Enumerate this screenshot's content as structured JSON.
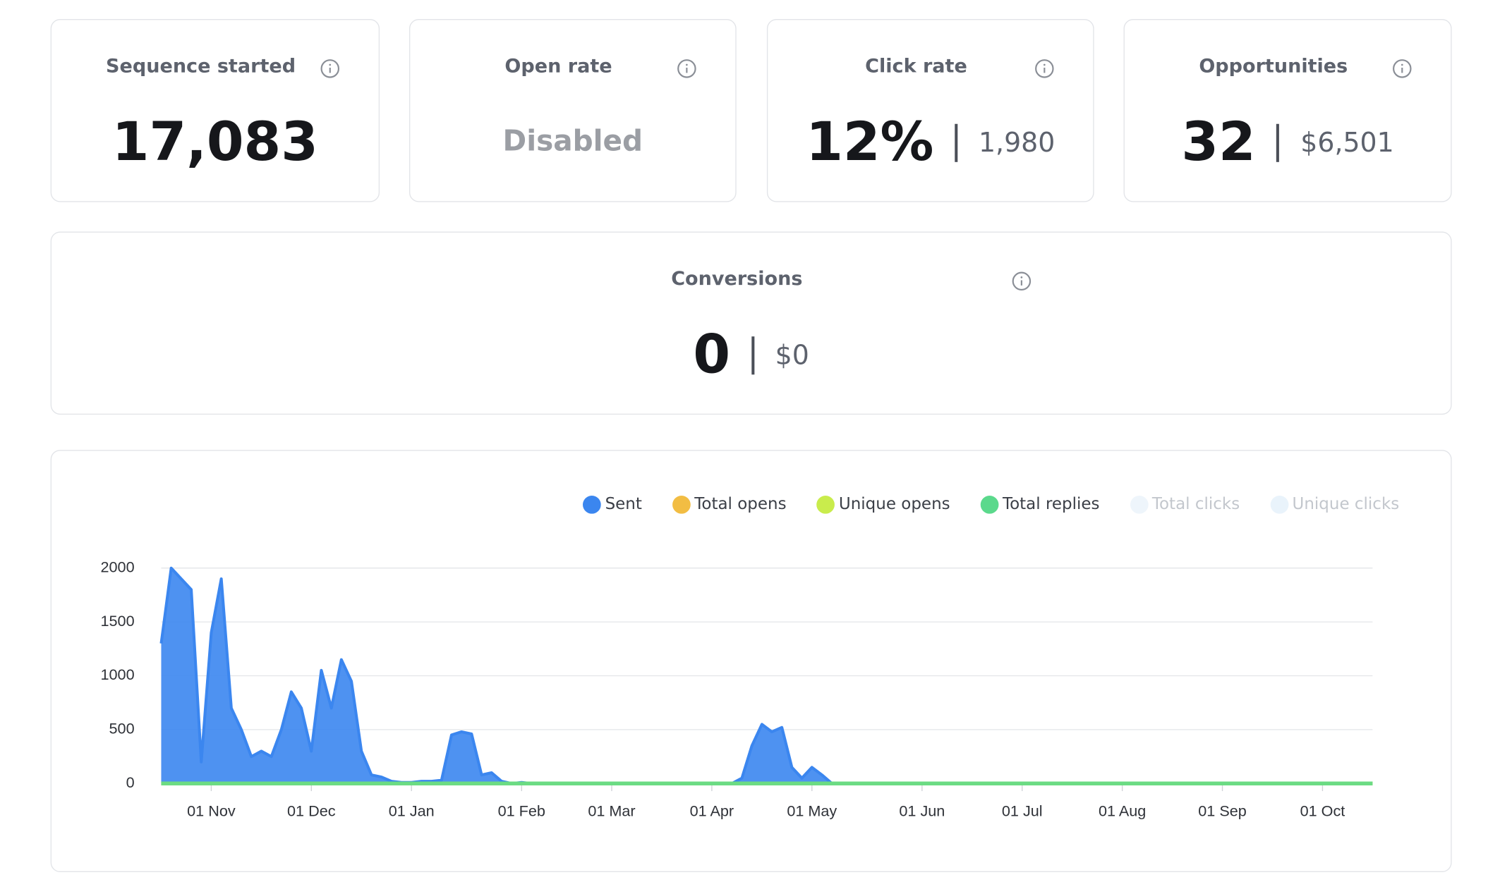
{
  "cards": [
    {
      "title": "Sequence started",
      "value": "17,083"
    },
    {
      "title": "Open rate",
      "value": "Disabled"
    },
    {
      "title": "Click rate",
      "value": "12%",
      "secondary": "1,980"
    },
    {
      "title": "Opportunities",
      "value": "32",
      "secondary": "$6,501"
    },
    {
      "title": "Conversions",
      "value": "0",
      "secondary": "$0"
    }
  ],
  "chart_data": {
    "type": "area",
    "categories": [
      null,
      null,
      null,
      null,
      null,
      "01 Nov",
      null,
      null,
      null,
      null,
      null,
      null,
      null,
      null,
      null,
      "01 Dec",
      null,
      null,
      null,
      null,
      null,
      null,
      null,
      null,
      null,
      "01 Jan",
      null,
      null,
      null,
      null,
      null,
      null,
      null,
      null,
      null,
      null,
      "01 Feb",
      null,
      null,
      null,
      null,
      null,
      null,
      null,
      null,
      "01 Mar",
      null,
      null,
      null,
      null,
      null,
      null,
      null,
      null,
      null,
      "01 Apr",
      null,
      null,
      null,
      null,
      null,
      null,
      null,
      null,
      null,
      "01 May",
      null,
      null,
      null,
      null,
      null,
      null,
      null,
      null,
      null,
      null,
      "01 Jun",
      null,
      null,
      null,
      null,
      null,
      null,
      null,
      null,
      null,
      "01 Jul",
      null,
      null,
      null,
      null,
      null,
      null,
      null,
      null,
      null,
      "01 Aug",
      null,
      null,
      null,
      null,
      null,
      null,
      null,
      null,
      null,
      "01 Sep",
      null,
      null,
      null,
      null,
      null,
      null,
      null,
      null,
      null,
      "01 Oct",
      null,
      null,
      null,
      null,
      null
    ],
    "series": [
      {
        "name": "Sent",
        "color": "#3b86ef",
        "fill_area": true,
        "values": [
          1300,
          2000,
          1900,
          1800,
          200,
          1400,
          1900,
          700,
          500,
          250,
          300,
          250,
          500,
          850,
          700,
          300,
          1050,
          700,
          1150,
          950,
          300,
          80,
          60,
          20,
          10,
          10,
          20,
          20,
          30,
          450,
          480,
          460,
          80,
          100,
          20,
          0,
          10,
          0,
          0,
          0,
          0,
          0,
          0,
          0,
          0,
          0,
          0,
          0,
          0,
          0,
          0,
          0,
          0,
          0,
          0,
          0,
          0,
          0,
          50,
          350,
          550,
          480,
          520,
          150,
          50,
          150,
          80,
          0,
          0,
          0,
          0,
          0,
          0,
          0,
          0,
          0,
          0,
          0,
          0,
          0,
          0,
          0,
          0,
          0,
          0,
          0,
          0,
          0,
          0,
          0,
          0,
          0,
          0,
          0,
          0,
          0,
          0,
          0,
          0,
          0,
          0,
          0,
          0,
          0,
          0,
          0,
          0,
          0,
          0,
          0,
          0,
          0,
          0,
          0,
          0,
          0,
          0,
          0,
          0,
          0,
          0,
          0
        ]
      },
      {
        "name": "Total opens",
        "color": "#f2bd43",
        "values": [
          0,
          0,
          0,
          0,
          0,
          0,
          0,
          0,
          0,
          0,
          0,
          0,
          0,
          0,
          0,
          0,
          0,
          0,
          0,
          0,
          0,
          0,
          0,
          0,
          0,
          0,
          0,
          0,
          0,
          0,
          0,
          0,
          0,
          0,
          0,
          0,
          0,
          0,
          0,
          0,
          0,
          0,
          0,
          0,
          0,
          0,
          0,
          0,
          0,
          0,
          0,
          0,
          0,
          0,
          0,
          0,
          0,
          0,
          0,
          0,
          0,
          0,
          0,
          0,
          0,
          0,
          0,
          0,
          0,
          0,
          0,
          0,
          0,
          0,
          0,
          0,
          0,
          0,
          0,
          0,
          0,
          0,
          0,
          0,
          0,
          0,
          0,
          0,
          0,
          0,
          0,
          0,
          0,
          0,
          0,
          0,
          0,
          0,
          0,
          0,
          0,
          0,
          0,
          0,
          0,
          0,
          0,
          0,
          0,
          0,
          0,
          0,
          0,
          0,
          0,
          0,
          0,
          0,
          0,
          0,
          0,
          0
        ]
      },
      {
        "name": "Unique opens",
        "color": "#c9ec4c",
        "values": [
          0,
          0,
          0,
          0,
          0,
          0,
          0,
          0,
          0,
          0,
          0,
          0,
          0,
          0,
          0,
          0,
          0,
          0,
          0,
          0,
          0,
          0,
          0,
          0,
          0,
          0,
          0,
          0,
          0,
          0,
          0,
          0,
          0,
          0,
          0,
          0,
          0,
          0,
          0,
          0,
          0,
          0,
          0,
          0,
          0,
          0,
          0,
          0,
          0,
          0,
          0,
          0,
          0,
          0,
          0,
          0,
          0,
          0,
          0,
          0,
          0,
          0,
          0,
          0,
          0,
          0,
          0,
          0,
          0,
          0,
          0,
          0,
          0,
          0,
          0,
          0,
          0,
          0,
          0,
          0,
          0,
          0,
          0,
          0,
          0,
          0,
          0,
          0,
          0,
          0,
          0,
          0,
          0,
          0,
          0,
          0,
          0,
          0,
          0,
          0,
          0,
          0,
          0,
          0,
          0,
          0,
          0,
          0,
          0,
          0,
          0,
          0,
          0,
          0,
          0,
          0,
          0,
          0,
          0,
          0,
          0,
          0
        ]
      },
      {
        "name": "Total replies",
        "color": "#5bd98c",
        "values": [
          0,
          0,
          0,
          0,
          0,
          0,
          0,
          0,
          0,
          0,
          0,
          0,
          0,
          0,
          0,
          0,
          0,
          0,
          0,
          0,
          0,
          0,
          0,
          0,
          0,
          0,
          0,
          0,
          0,
          0,
          0,
          0,
          0,
          0,
          0,
          0,
          0,
          0,
          0,
          0,
          0,
          0,
          0,
          0,
          0,
          0,
          0,
          0,
          0,
          0,
          0,
          0,
          0,
          0,
          0,
          0,
          0,
          0,
          0,
          0,
          0,
          0,
          0,
          0,
          0,
          0,
          0,
          0,
          0,
          0,
          0,
          0,
          0,
          0,
          0,
          0,
          0,
          0,
          0,
          0,
          0,
          0,
          0,
          0,
          0,
          0,
          0,
          0,
          0,
          0,
          0,
          0,
          0,
          0,
          0,
          0,
          0,
          0,
          0,
          0,
          0,
          0,
          0,
          0,
          0,
          0,
          0,
          0,
          0,
          0,
          0,
          0,
          0,
          0,
          0,
          0,
          0,
          0,
          0,
          0,
          0,
          0
        ]
      },
      {
        "name": "Total clicks",
        "color": "#eef5fb",
        "hidden": true
      },
      {
        "name": "Unique clicks",
        "color": "#e9f3fb",
        "hidden": true
      }
    ],
    "ylim": [
      0,
      2000
    ],
    "yticks": [
      0,
      500,
      1000,
      1500,
      2000
    ],
    "grid": true
  }
}
